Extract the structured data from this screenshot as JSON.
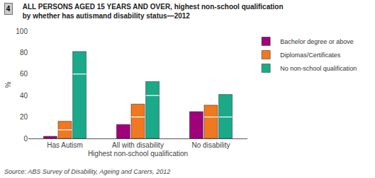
{
  "chart_data": {
    "type": "bar",
    "title": "ALL PERSONS AGED 15 YEARS AND OVER, highest non-school qualification",
    "subtitle": "by whether has autismand disability status—2012",
    "box_label": "4",
    "source": "Source: ABS Survey of Disability, Ageing and Carers, 2012",
    "xlabel": "Highest non-school qualification",
    "ylabel": "%",
    "categories": [
      "Has Autism",
      "All with disability",
      "No disability"
    ],
    "series": [
      {
        "name": "Bachelor degree or above",
        "color": "#a0007a",
        "values": [
          2,
          13,
          25
        ],
        "white_lines": [
          null,
          null,
          null
        ]
      },
      {
        "name": "Diplomas/Certificates",
        "color": "#f07820",
        "values": [
          16,
          32,
          31
        ],
        "white_lines": [
          8,
          20,
          20
        ]
      },
      {
        "name": "No non-school qualification",
        "color": "#1aaa8a",
        "values": [
          81,
          53,
          41
        ],
        "white_lines": [
          60,
          40,
          20
        ]
      }
    ],
    "ylim": [
      0,
      100
    ],
    "yticks": [
      0,
      20,
      40,
      60,
      80,
      100
    ],
    "grid": false,
    "legend": "upper right"
  }
}
